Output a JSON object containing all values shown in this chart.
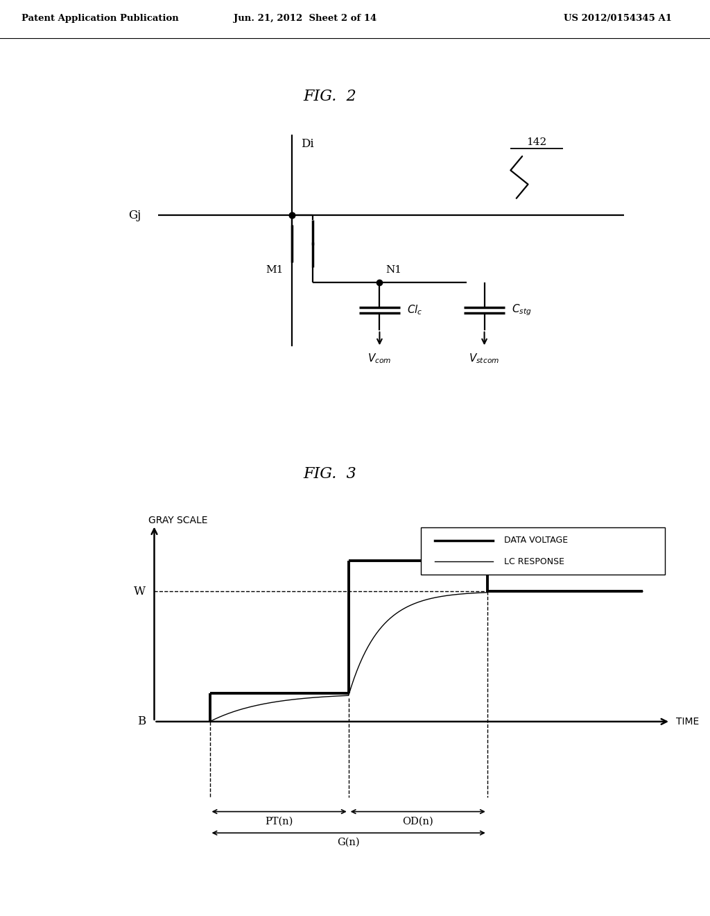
{
  "header_left": "Patent Application Publication",
  "header_mid": "Jun. 21, 2012  Sheet 2 of 14",
  "header_right": "US 2012/0154345 A1",
  "fig2_title": "FIG.  2",
  "fig3_title": "FIG.  3",
  "bg_color": "#ffffff",
  "fg_color": "#000000",
  "legend_data_voltage": "DATA VOLTAGE",
  "legend_lc_response": "LC RESPONSE",
  "ylabel": "GRAY SCALE",
  "xlabel": "TIME",
  "label_W": "W",
  "label_B": "B",
  "label_PT": "PT(n)",
  "label_OD": "OD(n)",
  "label_Gn": "G(n)",
  "label_Di": "Di",
  "label_Gj": "Gj",
  "label_N1": "N1",
  "label_M1": "M1",
  "label_142": "142"
}
